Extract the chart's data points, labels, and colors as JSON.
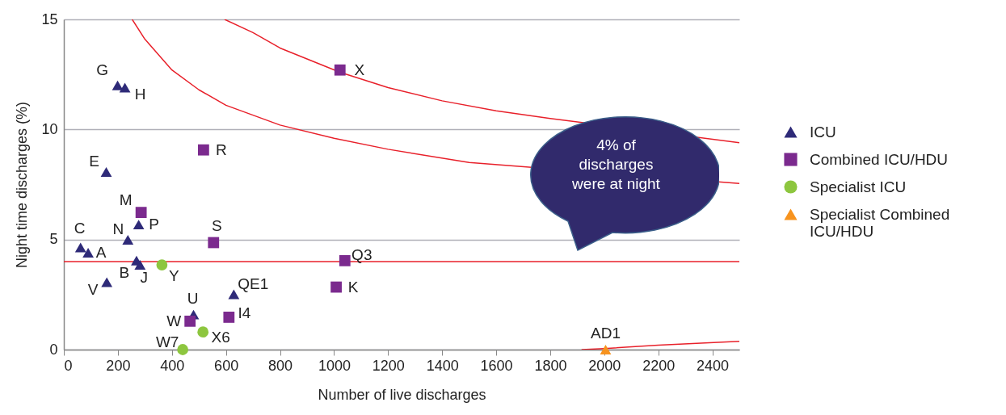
{
  "chart_data": {
    "type": "scatter",
    "xlabel": "Number of live discharges",
    "ylabel": "Night time discharges (%)",
    "xlim": [
      0,
      2500
    ],
    "xticks": [
      0,
      200,
      400,
      600,
      800,
      1000,
      1200,
      1400,
      1600,
      1800,
      2000,
      2200,
      2400
    ],
    "ylim": [
      0,
      15
    ],
    "yticks": [
      0,
      5,
      10,
      15
    ],
    "grid": "y",
    "legend": "right",
    "series": [
      {
        "name": "ICU",
        "color": "#2e2a78",
        "marker": "triangle",
        "x": [
          199,
          226,
          157,
          62,
          90,
          237,
          277,
          269,
          282,
          159,
          480,
          629
        ],
        "values": [
          12.0,
          11.9,
          8.07,
          4.64,
          4.4,
          4.99,
          5.68,
          4.04,
          3.85,
          3.06,
          1.59,
          2.51
        ]
      },
      {
        "name": "Combined ICU/HDU",
        "color": "#7b2a8e",
        "marker": "square",
        "x": [
          286,
          517,
          554,
          467,
          611,
          1022,
          1040,
          1008
        ],
        "values": [
          6.23,
          9.07,
          4.86,
          1.29,
          1.47,
          12.7,
          4.04,
          2.84
        ]
      },
      {
        "name": "Specialist ICU",
        "color": "#8dc63f",
        "marker": "circle",
        "x": [
          363,
          515,
          440
        ],
        "values": [
          3.85,
          0.8,
          0
        ]
      },
      {
        "name": "Specialist Combined ICU/HDU",
        "color": "#f7931e",
        "marker": "triangle",
        "x": [
          2005
        ],
        "values": [
          0
        ]
      },
      {
        "type": "line",
        "color": "#e8202a",
        "x": [
          595,
          700,
          800,
          1022,
          1200,
          1400,
          1600,
          1800,
          2000,
          2200,
          2500
        ],
        "values": [
          15,
          14.4,
          13.7,
          12.6,
          11.9,
          11.3,
          10.85,
          10.5,
          null,
          null,
          9.4
        ]
      },
      {
        "type": "line",
        "color": "#e8202a",
        "x": [
          253,
          300,
          400,
          500,
          600,
          800,
          1000,
          1200,
          1500,
          2000,
          2500
        ],
        "values": [
          15,
          14.1,
          12.7,
          11.8,
          11.1,
          10.2,
          9.6,
          9.1,
          8.5,
          null,
          7.55
        ]
      },
      {
        "type": "line",
        "color": "#e8202a",
        "x": [
          1916,
          2000,
          2200,
          2500
        ],
        "values": [
          0,
          0.05,
          0.2,
          0.38
        ]
      }
    ],
    "ref_lines": [
      {
        "axis": "y",
        "value": 4,
        "color": "#e8202a"
      }
    ],
    "annotations": [
      {
        "text": "G",
        "x": 199,
        "y": 12.0
      },
      {
        "text": "H",
        "x": 226,
        "y": 11.9
      },
      {
        "text": "E",
        "x": 157,
        "y": 8.07
      },
      {
        "text": "C",
        "x": 62,
        "y": 4.64
      },
      {
        "text": "A",
        "x": 90,
        "y": 4.4
      },
      {
        "text": "N",
        "x": 237,
        "y": 4.99
      },
      {
        "text": "P",
        "x": 277,
        "y": 5.68
      },
      {
        "text": "B",
        "x": 269,
        "y": 4.04
      },
      {
        "text": "J",
        "x": 282,
        "y": 3.85
      },
      {
        "text": "V",
        "x": 159,
        "y": 3.06
      },
      {
        "text": "U",
        "x": 480,
        "y": 1.59
      },
      {
        "text": "QE1",
        "x": 629,
        "y": 2.51
      },
      {
        "text": "M",
        "x": 286,
        "y": 6.23
      },
      {
        "text": "R",
        "x": 517,
        "y": 9.07
      },
      {
        "text": "S",
        "x": 554,
        "y": 4.86
      },
      {
        "text": "W",
        "x": 467,
        "y": 1.29
      },
      {
        "text": "I4",
        "x": 611,
        "y": 1.47
      },
      {
        "text": "X",
        "x": 1022,
        "y": 12.7
      },
      {
        "text": "Q3",
        "x": 1040,
        "y": 4.04
      },
      {
        "text": "K",
        "x": 1008,
        "y": 2.84
      },
      {
        "text": "Y",
        "x": 363,
        "y": 3.85
      },
      {
        "text": "X6",
        "x": 515,
        "y": 0.8
      },
      {
        "text": "W7",
        "x": 440,
        "y": 0
      },
      {
        "text": "AD1",
        "x": 2005,
        "y": 0
      },
      "4% of discharges were at night"
    ]
  }
}
